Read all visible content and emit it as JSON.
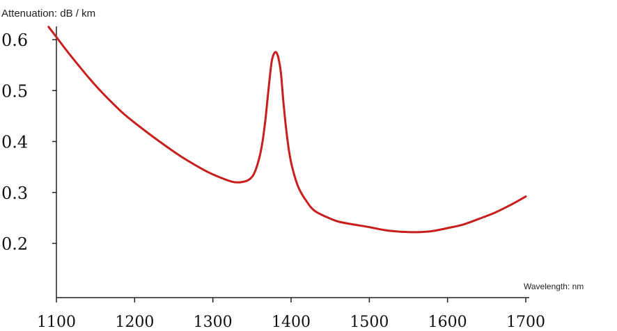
{
  "chart_data": {
    "type": "line",
    "ylabel": "Attenuation: dB / km",
    "xlabel": "Wavelength: nm",
    "xlim": [
      1100,
      1700
    ],
    "ylim": [
      0.1,
      0.62
    ],
    "xticks": [
      1100,
      1200,
      1300,
      1400,
      1500,
      1600,
      1700
    ],
    "xtick_labels": [
      "1100",
      "1200",
      "1300",
      "1400",
      "1500",
      "1600",
      "1700"
    ],
    "yticks": [
      0.2,
      0.3,
      0.4,
      0.5,
      0.6
    ],
    "ytick_labels": [
      "0.2",
      "0.3",
      "0.4",
      "0.5",
      "0.6"
    ],
    "grid": false,
    "line_color": "#c81e1e",
    "series": [
      {
        "x": [
          1090,
          1100,
          1120,
          1150,
          1180,
          1200,
          1230,
          1260,
          1290,
          1310,
          1325,
          1335,
          1345,
          1352,
          1358,
          1363,
          1367,
          1371,
          1375,
          1378,
          1381,
          1384,
          1387,
          1390,
          1394,
          1398,
          1403,
          1410,
          1420,
          1430,
          1445,
          1460,
          1480,
          1500,
          1520,
          1540,
          1560,
          1580,
          1600,
          1620,
          1640,
          1660,
          1680,
          1700
        ],
        "y": [
          0.625,
          0.605,
          0.565,
          0.51,
          0.463,
          0.437,
          0.402,
          0.37,
          0.343,
          0.329,
          0.321,
          0.32,
          0.324,
          0.335,
          0.36,
          0.395,
          0.44,
          0.5,
          0.555,
          0.572,
          0.575,
          0.563,
          0.535,
          0.48,
          0.42,
          0.375,
          0.34,
          0.308,
          0.282,
          0.264,
          0.252,
          0.243,
          0.237,
          0.232,
          0.226,
          0.223,
          0.222,
          0.224,
          0.23,
          0.237,
          0.248,
          0.26,
          0.275,
          0.292
        ]
      }
    ]
  }
}
